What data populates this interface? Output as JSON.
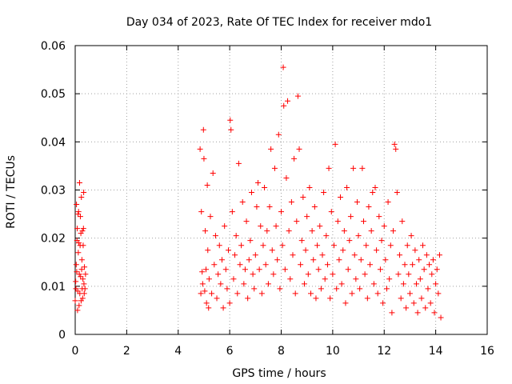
{
  "chart_data": {
    "type": "scatter",
    "title": "Day 034 of 2023, Rate Of TEC Index for receiver mdo1",
    "xlabel": "GPS time / hours",
    "ylabel": "ROTI / TECUs",
    "xlim": [
      0,
      16
    ],
    "ylim": [
      0,
      0.06
    ],
    "grid": true,
    "marker": "+",
    "marker_color": "#ff0000",
    "x_ticks": [
      "0",
      "2",
      "4",
      "6",
      "8",
      "10",
      "12",
      "14",
      "16"
    ],
    "y_ticks": [
      "0",
      "0.01",
      "0.02",
      "0.03",
      "0.04",
      "0.05",
      "0.06"
    ],
    "series": [
      {
        "name": "ROTI",
        "points": [
          [
            0.0,
            0.007
          ],
          [
            0.02,
            0.011
          ],
          [
            0.03,
            0.0095
          ],
          [
            0.04,
            0.0145
          ],
          [
            0.05,
            0.027
          ],
          [
            0.06,
            0.013
          ],
          [
            0.07,
            0.0195
          ],
          [
            0.08,
            0.022
          ],
          [
            0.09,
            0.005
          ],
          [
            0.1,
            0.009
          ],
          [
            0.11,
            0.025
          ],
          [
            0.12,
            0.017
          ],
          [
            0.13,
            0.0255
          ],
          [
            0.14,
            0.019
          ],
          [
            0.15,
            0.006
          ],
          [
            0.16,
            0.0125
          ],
          [
            0.17,
            0.0315
          ],
          [
            0.18,
            0.0085
          ],
          [
            0.19,
            0.0185
          ],
          [
            0.2,
            0.0245
          ],
          [
            0.21,
            0.012
          ],
          [
            0.22,
            0.021
          ],
          [
            0.23,
            0.007
          ],
          [
            0.24,
            0.0285
          ],
          [
            0.25,
            0.0135
          ],
          [
            0.26,
            0.0155
          ],
          [
            0.27,
            0.0095
          ],
          [
            0.28,
            0.0215
          ],
          [
            0.29,
            0.0075
          ],
          [
            0.3,
            0.0115
          ],
          [
            0.31,
            0.0185
          ],
          [
            0.32,
            0.022
          ],
          [
            0.33,
            0.0295
          ],
          [
            0.34,
            0.0105
          ],
          [
            0.35,
            0.0085
          ],
          [
            0.36,
            0.014
          ],
          [
            0.38,
            0.0095
          ],
          [
            0.4,
            0.0125
          ],
          [
            4.85,
            0.0385
          ],
          [
            4.88,
            0.0085
          ],
          [
            4.9,
            0.0255
          ],
          [
            4.93,
            0.013
          ],
          [
            4.95,
            0.0105
          ],
          [
            4.98,
            0.0425
          ],
          [
            5.0,
            0.0365
          ],
          [
            5.03,
            0.009
          ],
          [
            5.05,
            0.0215
          ],
          [
            5.08,
            0.0135
          ],
          [
            5.1,
            0.0065
          ],
          [
            5.13,
            0.031
          ],
          [
            5.15,
            0.0175
          ],
          [
            5.18,
            0.0055
          ],
          [
            5.2,
            0.0115
          ],
          [
            5.25,
            0.0245
          ],
          [
            5.3,
            0.0085
          ],
          [
            5.35,
            0.0335
          ],
          [
            5.4,
            0.0145
          ],
          [
            5.45,
            0.0205
          ],
          [
            5.5,
            0.0075
          ],
          [
            5.55,
            0.0125
          ],
          [
            5.6,
            0.0185
          ],
          [
            5.65,
            0.0105
          ],
          [
            5.7,
            0.0155
          ],
          [
            5.75,
            0.0055
          ],
          [
            5.8,
            0.0225
          ],
          [
            5.85,
            0.0135
          ],
          [
            5.9,
            0.0095
          ],
          [
            5.95,
            0.0175
          ],
          [
            6.0,
            0.0065
          ],
          [
            6.02,
            0.0445
          ],
          [
            6.05,
            0.0425
          ],
          [
            6.1,
            0.0255
          ],
          [
            6.15,
            0.0115
          ],
          [
            6.2,
            0.0165
          ],
          [
            6.25,
            0.0205
          ],
          [
            6.3,
            0.0085
          ],
          [
            6.35,
            0.0355
          ],
          [
            6.4,
            0.0145
          ],
          [
            6.45,
            0.0185
          ],
          [
            6.5,
            0.0275
          ],
          [
            6.55,
            0.0105
          ],
          [
            6.6,
            0.0135
          ],
          [
            6.65,
            0.0235
          ],
          [
            6.7,
            0.0075
          ],
          [
            6.75,
            0.0155
          ],
          [
            6.8,
            0.0195
          ],
          [
            6.85,
            0.0295
          ],
          [
            6.9,
            0.0125
          ],
          [
            6.95,
            0.0095
          ],
          [
            7.0,
            0.0165
          ],
          [
            7.05,
            0.0265
          ],
          [
            7.1,
            0.0315
          ],
          [
            7.15,
            0.0135
          ],
          [
            7.2,
            0.0225
          ],
          [
            7.25,
            0.0085
          ],
          [
            7.3,
            0.0185
          ],
          [
            7.35,
            0.0305
          ],
          [
            7.4,
            0.0145
          ],
          [
            7.45,
            0.0215
          ],
          [
            7.5,
            0.0105
          ],
          [
            7.55,
            0.0265
          ],
          [
            7.6,
            0.0385
          ],
          [
            7.65,
            0.0175
          ],
          [
            7.7,
            0.0125
          ],
          [
            7.75,
            0.0345
          ],
          [
            7.8,
            0.0225
          ],
          [
            7.85,
            0.0155
          ],
          [
            7.9,
            0.0415
          ],
          [
            7.95,
            0.0095
          ],
          [
            8.0,
            0.0255
          ],
          [
            8.05,
            0.0185
          ],
          [
            8.08,
            0.0555
          ],
          [
            8.1,
            0.0475
          ],
          [
            8.15,
            0.0135
          ],
          [
            8.2,
            0.0325
          ],
          [
            8.25,
            0.0485
          ],
          [
            8.3,
            0.0215
          ],
          [
            8.35,
            0.0115
          ],
          [
            8.4,
            0.0275
          ],
          [
            8.45,
            0.0165
          ],
          [
            8.5,
            0.0365
          ],
          [
            8.55,
            0.0085
          ],
          [
            8.6,
            0.0235
          ],
          [
            8.65,
            0.0495
          ],
          [
            8.7,
            0.0385
          ],
          [
            8.75,
            0.0145
          ],
          [
            8.8,
            0.0195
          ],
          [
            8.85,
            0.0285
          ],
          [
            8.9,
            0.0105
          ],
          [
            8.95,
            0.0175
          ],
          [
            9.0,
            0.0245
          ],
          [
            9.05,
            0.0125
          ],
          [
            9.1,
            0.0305
          ],
          [
            9.15,
            0.0085
          ],
          [
            9.2,
            0.0215
          ],
          [
            9.25,
            0.0155
          ],
          [
            9.3,
            0.0265
          ],
          [
            9.35,
            0.0075
          ],
          [
            9.4,
            0.0185
          ],
          [
            9.45,
            0.0135
          ],
          [
            9.5,
            0.0225
          ],
          [
            9.55,
            0.0095
          ],
          [
            9.6,
            0.0165
          ],
          [
            9.65,
            0.0295
          ],
          [
            9.7,
            0.0115
          ],
          [
            9.75,
            0.0205
          ],
          [
            9.8,
            0.0145
          ],
          [
            9.85,
            0.0345
          ],
          [
            9.9,
            0.0075
          ],
          [
            9.95,
            0.0255
          ],
          [
            10.0,
            0.0125
          ],
          [
            10.05,
            0.0185
          ],
          [
            10.1,
            0.0395
          ],
          [
            10.15,
            0.0095
          ],
          [
            10.2,
            0.0235
          ],
          [
            10.25,
            0.0155
          ],
          [
            10.3,
            0.0285
          ],
          [
            10.35,
            0.0105
          ],
          [
            10.4,
            0.0175
          ],
          [
            10.45,
            0.0215
          ],
          [
            10.5,
            0.0065
          ],
          [
            10.55,
            0.0305
          ],
          [
            10.6,
            0.0135
          ],
          [
            10.65,
            0.0195
          ],
          [
            10.7,
            0.0245
          ],
          [
            10.75,
            0.0085
          ],
          [
            10.8,
            0.0345
          ],
          [
            10.85,
            0.0165
          ],
          [
            10.9,
            0.0115
          ],
          [
            10.95,
            0.0275
          ],
          [
            11.0,
            0.0205
          ],
          [
            11.05,
            0.0095
          ],
          [
            11.1,
            0.0155
          ],
          [
            11.15,
            0.0345
          ],
          [
            11.2,
            0.0235
          ],
          [
            11.25,
            0.0125
          ],
          [
            11.3,
            0.0185
          ],
          [
            11.35,
            0.0075
          ],
          [
            11.4,
            0.0265
          ],
          [
            11.45,
            0.0145
          ],
          [
            11.5,
            0.0215
          ],
          [
            11.55,
            0.0295
          ],
          [
            11.6,
            0.0105
          ],
          [
            11.65,
            0.0305
          ],
          [
            11.7,
            0.0175
          ],
          [
            11.75,
            0.0085
          ],
          [
            11.8,
            0.0245
          ],
          [
            11.85,
            0.0135
          ],
          [
            11.9,
            0.0195
          ],
          [
            11.95,
            0.0065
          ],
          [
            12.0,
            0.0225
          ],
          [
            12.05,
            0.0155
          ],
          [
            12.1,
            0.0095
          ],
          [
            12.15,
            0.0275
          ],
          [
            12.2,
            0.0115
          ],
          [
            12.25,
            0.0185
          ],
          [
            12.3,
            0.0045
          ],
          [
            12.35,
            0.0215
          ],
          [
            12.4,
            0.0395
          ],
          [
            12.45,
            0.0385
          ],
          [
            12.5,
            0.0295
          ],
          [
            12.55,
            0.0125
          ],
          [
            12.6,
            0.0165
          ],
          [
            12.65,
            0.0075
          ],
          [
            12.7,
            0.0235
          ],
          [
            12.75,
            0.0105
          ],
          [
            12.8,
            0.0145
          ],
          [
            12.85,
            0.0055
          ],
          [
            12.9,
            0.0185
          ],
          [
            12.95,
            0.0125
          ],
          [
            13.0,
            0.0085
          ],
          [
            13.05,
            0.0205
          ],
          [
            13.1,
            0.0145
          ],
          [
            13.15,
            0.0065
          ],
          [
            13.2,
            0.0175
          ],
          [
            13.25,
            0.0105
          ],
          [
            13.3,
            0.0045
          ],
          [
            13.35,
            0.0155
          ],
          [
            13.4,
            0.0115
          ],
          [
            13.45,
            0.0075
          ],
          [
            13.5,
            0.0185
          ],
          [
            13.55,
            0.0135
          ],
          [
            13.6,
            0.0055
          ],
          [
            13.65,
            0.0165
          ],
          [
            13.7,
            0.0095
          ],
          [
            13.75,
            0.0145
          ],
          [
            13.8,
            0.0065
          ],
          [
            13.85,
            0.0125
          ],
          [
            13.9,
            0.0155
          ],
          [
            13.95,
            0.0045
          ],
          [
            14.0,
            0.0105
          ],
          [
            14.05,
            0.0135
          ],
          [
            14.1,
            0.0085
          ],
          [
            14.15,
            0.0165
          ],
          [
            14.2,
            0.0035
          ]
        ]
      }
    ]
  }
}
